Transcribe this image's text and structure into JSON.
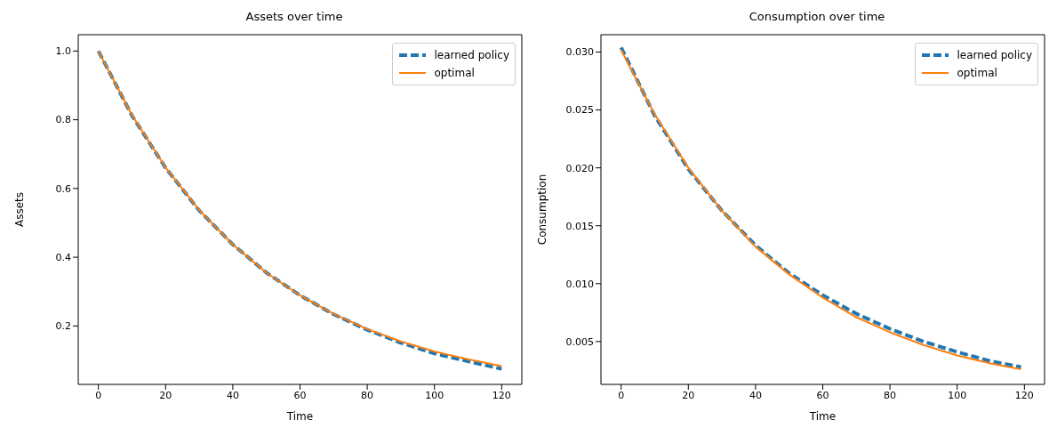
{
  "chart_data": [
    {
      "type": "line",
      "title": "Assets over time",
      "xlabel": "Time",
      "ylabel": "Assets",
      "xlim": [
        -6,
        126
      ],
      "xticks": [
        0,
        20,
        40,
        60,
        80,
        100,
        120
      ],
      "ylim": [
        0.03,
        1.0475
      ],
      "yticks": [
        {
          "value": 0.2,
          "label": "0.2"
        },
        {
          "value": 0.4,
          "label": "0.4"
        },
        {
          "value": 0.6,
          "label": "0.6"
        },
        {
          "value": 0.8,
          "label": "0.8"
        },
        {
          "value": 1,
          "label": "1.0"
        }
      ],
      "grid": false,
      "legend": "top right",
      "marker": "none",
      "series": [
        {
          "name": "learned policy",
          "color": "#1f77b4",
          "line_style": "dashed",
          "x": [
            0,
            10,
            20,
            30,
            40,
            50,
            60,
            70,
            80,
            90,
            100,
            110,
            120
          ],
          "values": [
            1.0,
            0.812,
            0.66,
            0.536,
            0.437,
            0.355,
            0.289,
            0.234,
            0.189,
            0.151,
            0.12,
            0.097,
            0.075
          ]
        },
        {
          "name": "optimal",
          "color": "#ff7f0e",
          "line_style": "solid",
          "x": [
            0,
            10,
            20,
            30,
            40,
            50,
            60,
            70,
            80,
            90,
            100,
            110,
            120
          ],
          "values": [
            1.0,
            0.813,
            0.661,
            0.537,
            0.437,
            0.355,
            0.289,
            0.235,
            0.191,
            0.155,
            0.126,
            0.103,
            0.083
          ]
        }
      ]
    },
    {
      "type": "line",
      "title": "Consumption over time",
      "xlabel": "Time",
      "ylabel": "Consumption",
      "xlim": [
        -6,
        126
      ],
      "xticks": [
        0,
        20,
        40,
        60,
        80,
        100,
        120
      ],
      "ylim": [
        0.0013,
        0.0315
      ],
      "yticks": [
        {
          "value": 0.005,
          "label": "0.005"
        },
        {
          "value": 0.01,
          "label": "0.010"
        },
        {
          "value": 0.015,
          "label": "0.015"
        },
        {
          "value": 0.02,
          "label": "0.020"
        },
        {
          "value": 0.025,
          "label": "0.025"
        },
        {
          "value": 0.03,
          "label": "0.030"
        }
      ],
      "grid": false,
      "legend": "top right",
      "marker": "none",
      "series": [
        {
          "name": "learned policy",
          "color": "#1f77b4",
          "line_style": "dashed",
          "x": [
            0,
            10,
            20,
            30,
            40,
            50,
            60,
            70,
            80,
            90,
            100,
            110,
            119
          ],
          "values": [
            0.0304,
            0.0245,
            0.0199,
            0.0163,
            0.0133,
            0.0109,
            0.009,
            0.0074,
            0.0061,
            0.005,
            0.0041,
            0.0033,
            0.0028
          ]
        },
        {
          "name": "optimal",
          "color": "#ff7f0e",
          "line_style": "solid",
          "x": [
            0,
            10,
            20,
            30,
            40,
            50,
            60,
            70,
            80,
            90,
            100,
            110,
            119
          ],
          "values": [
            0.0302,
            0.0246,
            0.02,
            0.0163,
            0.0132,
            0.0108,
            0.0088,
            0.0071,
            0.0058,
            0.0047,
            0.0038,
            0.0031,
            0.0026
          ]
        }
      ]
    }
  ]
}
